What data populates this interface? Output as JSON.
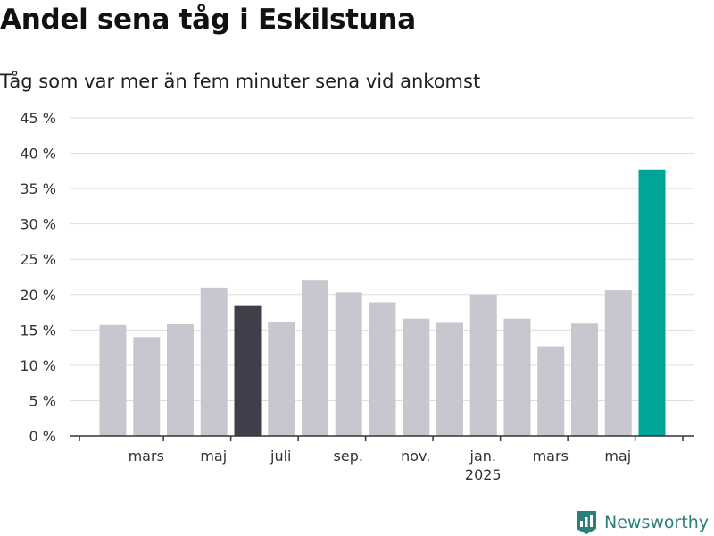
{
  "header": {
    "title": "Andel sena tåg i Eskilstuna",
    "subtitle": "Tåg som var mer än fem minuter sena vid ankomst"
  },
  "brand": {
    "name": "Newsworthy"
  },
  "colors": {
    "bar": "#c8c7d0",
    "highlight_dark": "#3f3e4a",
    "highlight_accent": "#00a59a",
    "grid": "#dddddd",
    "axis": "#333333"
  },
  "chart_data": {
    "type": "bar",
    "ylim": [
      0,
      45
    ],
    "y_ticks": [
      "0 %",
      "5 %",
      "10 %",
      "15 %",
      "20 %",
      "25 %",
      "30 %",
      "35 %",
      "40 %",
      "45 %"
    ],
    "y_tick_values": [
      0,
      5,
      10,
      15,
      20,
      25,
      30,
      35,
      40,
      45
    ],
    "x_tick_labels": [
      {
        "label": "mars",
        "month_index": 1,
        "sub": ""
      },
      {
        "label": "maj",
        "month_index": 3,
        "sub": ""
      },
      {
        "label": "juli",
        "month_index": 5,
        "sub": ""
      },
      {
        "label": "sep.",
        "month_index": 7,
        "sub": ""
      },
      {
        "label": "nov.",
        "month_index": 9,
        "sub": ""
      },
      {
        "label": "jan.",
        "month_index": 11,
        "sub": "2025"
      },
      {
        "label": "mars",
        "month_index": 13,
        "sub": ""
      },
      {
        "label": "maj",
        "month_index": 15,
        "sub": ""
      }
    ],
    "values": [
      15.7,
      14.0,
      15.8,
      21.0,
      18.5,
      16.1,
      22.1,
      20.3,
      18.9,
      16.6,
      16.0,
      20.0,
      16.6,
      12.7,
      15.9,
      20.6,
      37.7
    ],
    "highlight": {
      "4": "dark",
      "16": "accent"
    },
    "grid": true,
    "legend": "none"
  }
}
